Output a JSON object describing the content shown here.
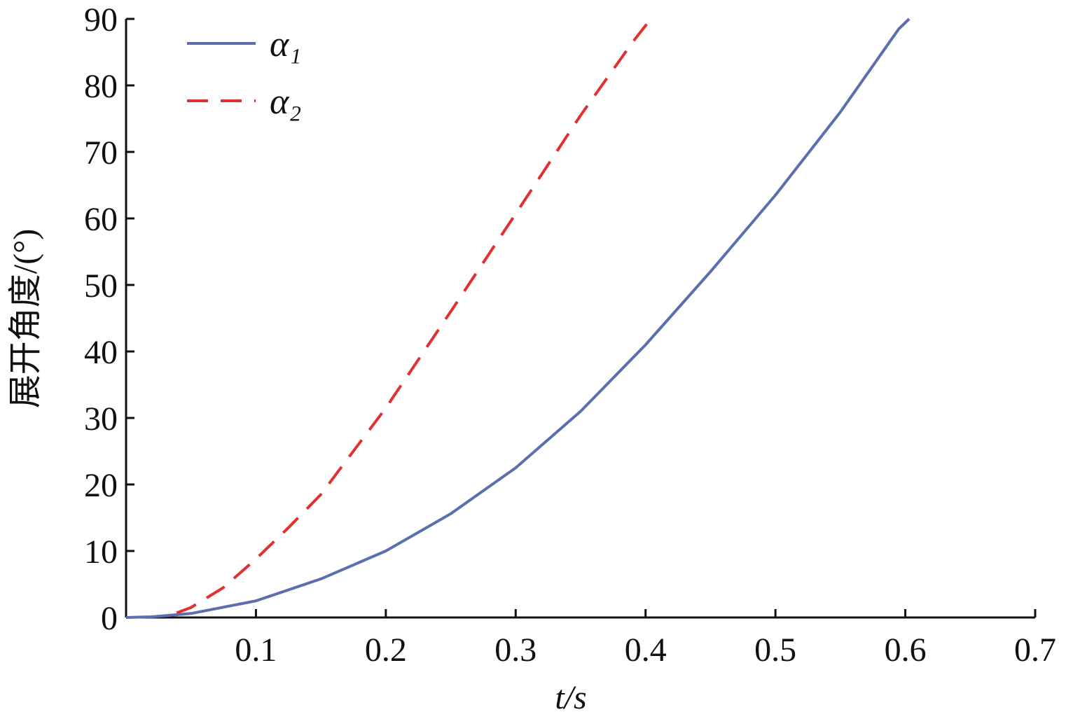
{
  "chart_data": {
    "type": "line",
    "x_label": "t/s",
    "y_label": "展开角度/(°)",
    "xlim": [
      0,
      0.7
    ],
    "xticks": [
      0.1,
      0.2,
      0.3,
      0.4,
      0.5,
      0.6,
      0.7
    ],
    "ylim": [
      0,
      90
    ],
    "yticks": [
      0,
      10,
      20,
      30,
      40,
      50,
      60,
      70,
      80,
      90
    ],
    "legend": "upper left",
    "series": [
      {
        "name": "α₁",
        "color": "#5b6fae",
        "dash": false,
        "x": [
          0,
          0.02,
          0.05,
          0.1,
          0.15,
          0.2,
          0.25,
          0.3,
          0.35,
          0.4,
          0.45,
          0.5,
          0.55,
          0.595,
          0.603
        ],
        "values": [
          0,
          0.1,
          0.6,
          2.5,
          5.8,
          10,
          15.6,
          22.5,
          31,
          41,
          52,
          63.5,
          76,
          88.5,
          90
        ]
      },
      {
        "name": "α₂",
        "color": "#e03030",
        "dash": true,
        "x": [
          0.039,
          0.05,
          0.075,
          0.1,
          0.125,
          0.15,
          0.2,
          0.25,
          0.3,
          0.35,
          0.39,
          0.4,
          0.405
        ],
        "values": [
          0.7,
          1.5,
          4.5,
          8.8,
          13.5,
          18.5,
          31.5,
          46,
          60.7,
          75.5,
          86.5,
          89,
          90
        ]
      }
    ]
  }
}
